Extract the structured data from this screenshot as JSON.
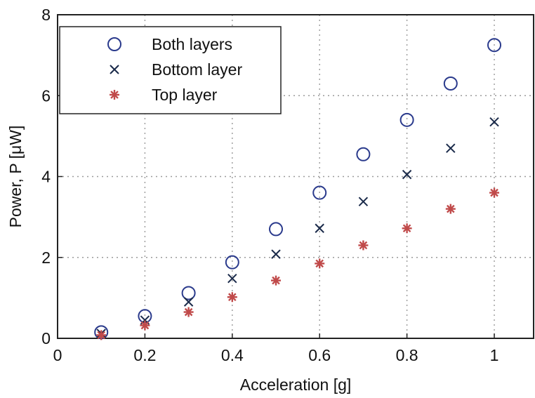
{
  "chart_data": {
    "type": "scatter",
    "xlabel": "Acceleration [g]",
    "ylabel": "Power, P [μW]",
    "xlim": [
      0,
      1.09
    ],
    "ylim": [
      0,
      8
    ],
    "x_ticks": [
      0,
      0.2,
      0.4,
      0.6,
      0.8,
      1
    ],
    "x_tick_labels": [
      "0",
      "0.2",
      "0.4",
      "0.6",
      "0.8",
      "1"
    ],
    "y_ticks": [
      0,
      2,
      4,
      6,
      8
    ],
    "y_tick_labels": [
      "0",
      "2",
      "4",
      "6",
      "8"
    ],
    "grid": true,
    "legend_position": "top-left",
    "x": [
      0.1,
      0.2,
      0.3,
      0.4,
      0.5,
      0.6,
      0.7,
      0.8,
      0.9,
      1.0
    ],
    "series": [
      {
        "name": "Both layers",
        "marker": "circle",
        "color": "#2a3a8c",
        "values": [
          0.15,
          0.55,
          1.12,
          1.88,
          2.7,
          3.6,
          4.55,
          5.4,
          6.3,
          7.25
        ]
      },
      {
        "name": "Bottom layer",
        "marker": "x",
        "color": "#1a2a4a",
        "values": [
          0.12,
          0.45,
          0.9,
          1.48,
          2.08,
          2.72,
          3.38,
          4.05,
          4.7,
          5.35
        ]
      },
      {
        "name": "Top layer",
        "marker": "asterisk",
        "color": "#c04a4a",
        "values": [
          0.08,
          0.32,
          0.65,
          1.02,
          1.43,
          1.85,
          2.3,
          2.72,
          3.2,
          3.6
        ]
      }
    ]
  }
}
